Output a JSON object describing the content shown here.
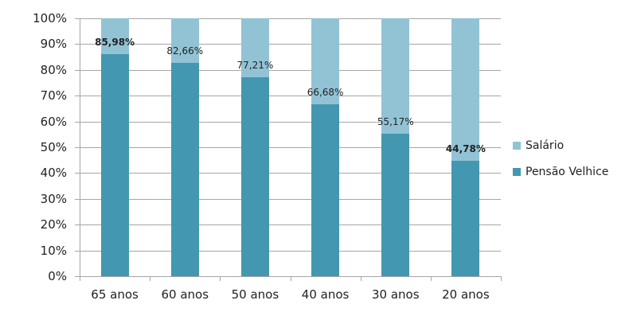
{
  "chart_data": {
    "type": "bar",
    "stacked": true,
    "percent_stacked": true,
    "title": "",
    "xlabel": "",
    "ylabel": "",
    "ylim": [
      0,
      100
    ],
    "y_ticks": [
      "0%",
      "10%",
      "20%",
      "30%",
      "40%",
      "50%",
      "60%",
      "70%",
      "80%",
      "90%",
      "100%"
    ],
    "categories": [
      "65 anos",
      "60 anos",
      "50 anos",
      "40 anos",
      "30 anos",
      "20 anos"
    ],
    "series": [
      {
        "name": "Pensão Velhice",
        "color": "#4397b0",
        "values": [
          85.98,
          82.66,
          77.21,
          66.68,
          55.17,
          44.78
        ]
      },
      {
        "name": "Salário",
        "color": "#92c3d5",
        "values": [
          14.02,
          17.34,
          22.79,
          33.32,
          44.83,
          55.22
        ]
      }
    ],
    "data_labels": [
      "85,98%",
      "82,66%",
      "77,21%",
      "66,68%",
      "55,17%",
      "44,78%"
    ],
    "bold_labels": [
      true,
      false,
      false,
      false,
      false,
      true
    ],
    "grid": true,
    "legend_position": "right",
    "legend": [
      "Salário",
      "Pensão Velhice"
    ]
  }
}
